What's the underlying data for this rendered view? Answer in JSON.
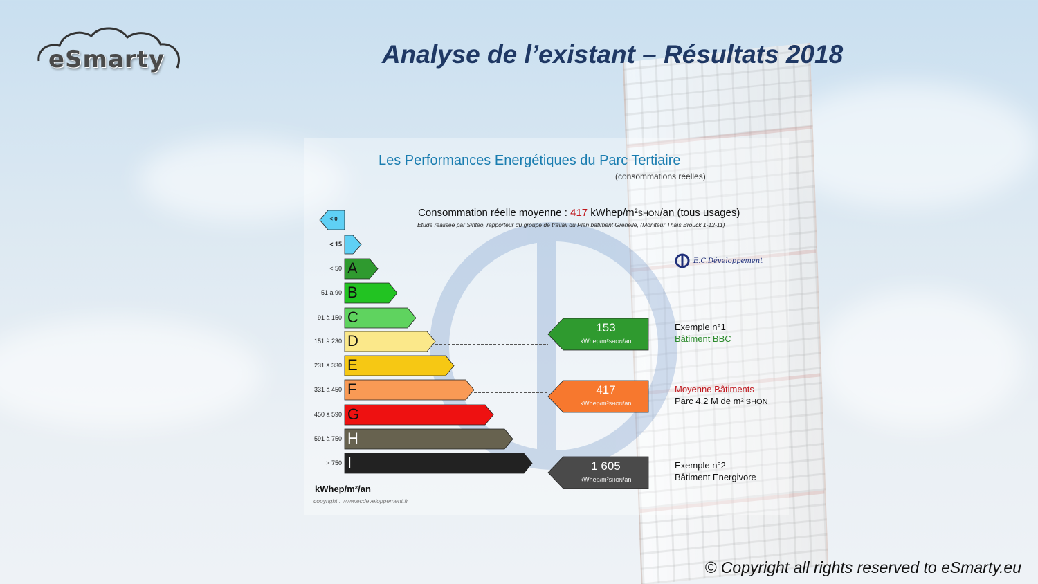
{
  "header": {
    "logo_text": "eSmarty",
    "title": "Analyse de l’existant – Résultats 2018"
  },
  "footer": {
    "copyright": "© Copyright all rights reserved to eSmarty.eu"
  },
  "diagram": {
    "title": "Les Performances Energétiques du Parc Tertiaire",
    "subtitle": "(consommations réelles)",
    "consumption": {
      "prefix": "Consommation réelle moyenne : ",
      "value": "417",
      "unit": " kWhep/m²",
      "unit_sub": "SHON",
      "suffix": "/an (tous usages)"
    },
    "study_note": "Etude réalisée par Sinteo, rapporteur du groupe de travail du Plan bâtiment Grenelle, (Moniteur Thaïs Brouck 1-12-11)",
    "brand_mark": "E.C.Développement",
    "axis_unit": "kWhep/m²/an",
    "credit": "copyright : www.ecdeveloppement.fr",
    "classes": [
      {
        "letter": "",
        "range": "< 0",
        "color": "#5fd0f5",
        "direction": "left"
      },
      {
        "letter": "",
        "range": "< 15",
        "color": "#5fd0f5",
        "direction": "right"
      },
      {
        "letter": "A",
        "range": "< 50",
        "color": "#2f9a2f",
        "direction": "right"
      },
      {
        "letter": "B",
        "range": "51 à 90",
        "color": "#22c322",
        "direction": "right"
      },
      {
        "letter": "C",
        "range": "91 à 150",
        "color": "#5fd35f",
        "direction": "right"
      },
      {
        "letter": "D",
        "range": "151 à 230",
        "color": "#fbe88a",
        "direction": "right"
      },
      {
        "letter": "E",
        "range": "231 à 330",
        "color": "#f6c814",
        "direction": "right"
      },
      {
        "letter": "F",
        "range": "331 à 450",
        "color": "#f99a55",
        "direction": "right"
      },
      {
        "letter": "G",
        "range": "450 à 590",
        "color": "#ee1111",
        "direction": "right"
      },
      {
        "letter": "H",
        "range": "591 à 750",
        "color": "#67624f",
        "direction": "right"
      },
      {
        "letter": "I",
        "range": "> 750",
        "color": "#222222",
        "direction": "right"
      }
    ],
    "markers": [
      {
        "value": "153",
        "unit": "kWhep/m²",
        "unit_sub": "SHON",
        "unit_suffix": "/an",
        "color": "#2f9a2f",
        "class_letter": "D",
        "label_line1": "Exemple n°1",
        "label_line2": "Bâtiment BBC"
      },
      {
        "value": "417",
        "unit": "kWhep/m²",
        "unit_sub": "SHON",
        "unit_suffix": "/an",
        "color": "#f7782e",
        "class_letter": "F",
        "label_line1": "Moyenne Bâtiments",
        "label_line2": "Parc 4,2 M de m²",
        "label_line2_sub": " SHON"
      },
      {
        "value": "1 605",
        "unit": "kWhep/m²",
        "unit_sub": "SHON",
        "unit_suffix": "/an",
        "color": "#4a4a4a",
        "class_letter": "I",
        "label_line1": "Exemple n°2",
        "label_line2": "Bâtiment Energivore"
      }
    ]
  }
}
